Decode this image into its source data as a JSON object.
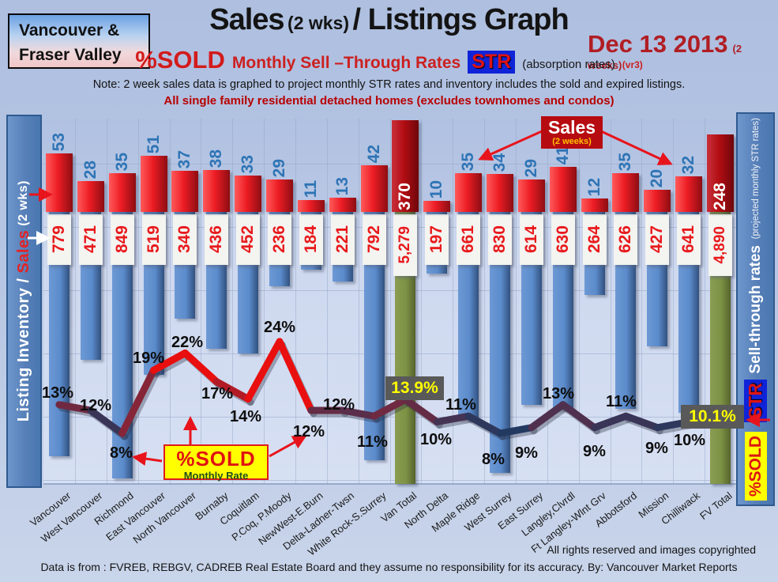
{
  "header": {
    "region_line1": "Vancouver &",
    "region_line2": "Fraser Valley",
    "title_main": "Sales",
    "title_paren": "(2 wks)",
    "title_rest": "/ Listings Graph",
    "date": "Dec 13 2013",
    "date_note": "(2 weeks)",
    "str": {
      "pct_sold": "%SOLD",
      "middle": "Monthly Sell –Through Rates",
      "badge": "STR",
      "absorption": "(absorption rates)",
      "version": "(vr3)"
    },
    "note": "Note: 2 week sales data is graphed to project monthly STR rates and inventory includes the sold and expired listings.",
    "subtitle": "All single family residential detached homes (excludes townhomes and condos)"
  },
  "left_axis": {
    "part1": "Listing Inventory / ",
    "part2": "Sales",
    "part3": " (2  wks)"
  },
  "right_axis": {
    "label": "Sell-through rates",
    "sub": "(projected monthly STR rates)",
    "str": "STR",
    "pct_sold": "%SOLD"
  },
  "annotations": {
    "sales_box": {
      "title": "Sales",
      "sub": "(2 weeks)"
    },
    "pct_box": {
      "title": "%SOLD",
      "sub": "Monthly Rate"
    }
  },
  "chart_data": {
    "type": "bar+line",
    "title": "Sales (2 wks)/ Listings Graph",
    "legend_position": "none",
    "grid": true,
    "categories": [
      "Vancouver",
      "West Vancouver",
      "Richmond",
      "East Vancouver",
      "North Vancouver",
      "Burnaby",
      "Coquitlam",
      "P.Coq, P.Moody",
      "NewWest-E.Burn",
      "Delta-Ladner-Twsn",
      "White Rock-S.Surrey",
      "Van Total",
      "North Delta",
      "Maple Ridge",
      "West Surrey",
      "East Surrey",
      "Langley,Clvrdl",
      "Ft Langley-Wlnt Grv",
      "Abbotsford",
      "Mission",
      "Chilliwack",
      "FV Total"
    ],
    "series": [
      {
        "name": "Sales (2 weeks)",
        "type": "bar",
        "values": [
          53,
          28,
          35,
          51,
          37,
          38,
          33,
          29,
          11,
          13,
          42,
          370,
          10,
          35,
          34,
          29,
          41,
          12,
          35,
          20,
          32,
          248
        ]
      },
      {
        "name": "Listing Inventory",
        "type": "bar",
        "values": [
          779,
          471,
          849,
          519,
          340,
          436,
          452,
          236,
          184,
          221,
          792,
          5279,
          197,
          661,
          830,
          614,
          630,
          264,
          626,
          427,
          641,
          4890
        ]
      },
      {
        "name": "%SOLD Monthly Rate (STR)",
        "type": "line",
        "values": [
          13,
          12,
          8,
          19,
          22,
          17,
          14,
          24,
          12,
          12,
          11,
          13.9,
          10,
          11,
          8,
          9,
          13,
          9,
          11,
          9,
          10,
          10.1
        ]
      }
    ],
    "total_columns": [
      "Van Total",
      "FV Total"
    ],
    "sales_labels": [
      "53",
      "28",
      "35",
      "51",
      "37",
      "38",
      "33",
      "29",
      "11",
      "13",
      "42",
      "370",
      "10",
      "35",
      "34",
      "29",
      "41",
      "12",
      "35",
      "20",
      "32",
      "248"
    ],
    "inventory_labels": [
      "779",
      "471",
      "849",
      "519",
      "340",
      "436",
      "452",
      "236",
      "184",
      "221",
      "792",
      "5,279",
      "197",
      "661",
      "830",
      "614",
      "630",
      "264",
      "626",
      "427",
      "641",
      "4,890"
    ],
    "pct_labels": [
      "13%",
      "12%",
      "8%",
      "19%",
      "22%",
      "17%",
      "14%",
      "24%",
      "12%",
      "12%",
      "11%",
      "13.9%",
      "10%",
      "11%",
      "8%",
      "9%",
      "13%",
      "9%",
      "11%",
      "9%",
      "10%",
      "10.1%"
    ]
  },
  "colors": {
    "bar_blue": "#5b8bcb",
    "bar_red": "#ed1c24",
    "total_bar_red": "#b20d13",
    "total_bar_green": "#7d9144",
    "line_low": "#233a60",
    "line_high": "#e90f0f",
    "sales_number_blue": "#2e74b5",
    "inventory_number_red": "#e8191c",
    "highlight_yellow": "#ffff00",
    "highlight_gray": "#595959",
    "str_badge_blue": "#0f23d8",
    "accent_dark_red": "#b60b10"
  },
  "footer": {
    "rights": "All rights reserved and  images copyrighted",
    "source": "Data is from : FVREB, REBGV, CADREB Real Estate Board and they assume no responsibility for its accuracy. By: Vancouver Market Reports"
  }
}
